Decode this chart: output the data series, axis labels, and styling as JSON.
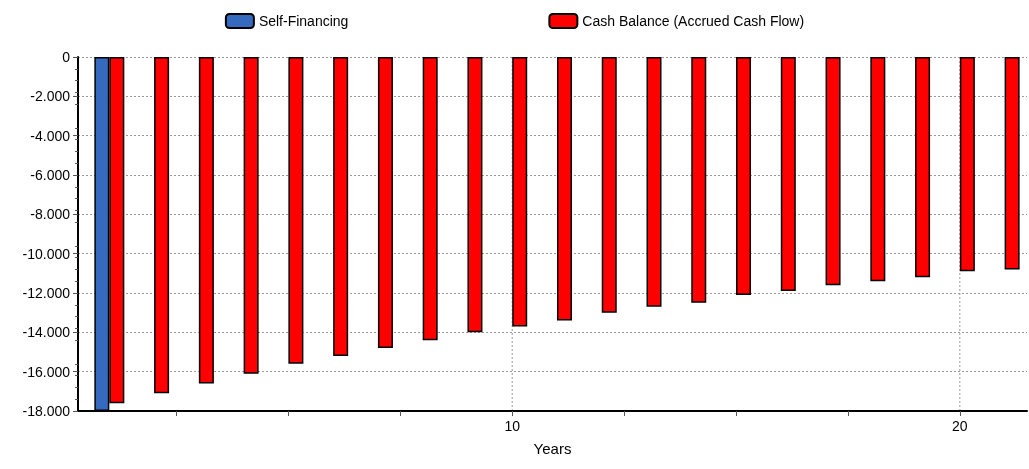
{
  "chart_data": {
    "type": "bar",
    "xlabel": "Years",
    "xlim": [
      0.3,
      21.5
    ],
    "xticks": [
      {
        "value": 2.5,
        "label": null
      },
      {
        "value": 5,
        "label": null
      },
      {
        "value": 7.5,
        "label": null
      },
      10,
      {
        "value": 12.5,
        "label": null
      },
      {
        "value": 15,
        "label": null
      },
      {
        "value": 17.5,
        "label": null
      },
      20
    ],
    "ylim": [
      -18000,
      0
    ],
    "yticks": [
      {
        "value": -18000,
        "label": "-18.000"
      },
      {
        "value": -16000,
        "label": "-16.000"
      },
      {
        "value": -14000,
        "label": "-14.000"
      },
      {
        "value": -12000,
        "label": "-12.000"
      },
      {
        "value": -10000,
        "label": "-10.000"
      },
      {
        "value": -8000,
        "label": "-8.000"
      },
      {
        "value": -6000,
        "label": "-6.000"
      },
      {
        "value": -4000,
        "label": "-4.000"
      },
      {
        "value": -2000,
        "label": "-2.000"
      },
      0
    ],
    "series": [
      {
        "name": "Self-Financing",
        "color": "#356abf",
        "x": [
          1
        ],
        "values": [
          -18000
        ]
      },
      {
        "name": "Cash Balance (Accrued Cash Flow)",
        "color": "#ff0000",
        "x": [
          1,
          2,
          3,
          4,
          5,
          6,
          7,
          8,
          9,
          10,
          11,
          12,
          13,
          14,
          15,
          16,
          17,
          18,
          19,
          20,
          21
        ],
        "values": [
          -17600,
          -17100,
          -16600,
          -16100,
          -15600,
          -15200,
          -14800,
          -14400,
          -14000,
          -13700,
          -13400,
          -13000,
          -12700,
          -12500,
          -12100,
          -11900,
          -11600,
          -11400,
          -11200,
          -10900,
          -10800
        ]
      }
    ],
    "grid": true,
    "legend": "top"
  }
}
